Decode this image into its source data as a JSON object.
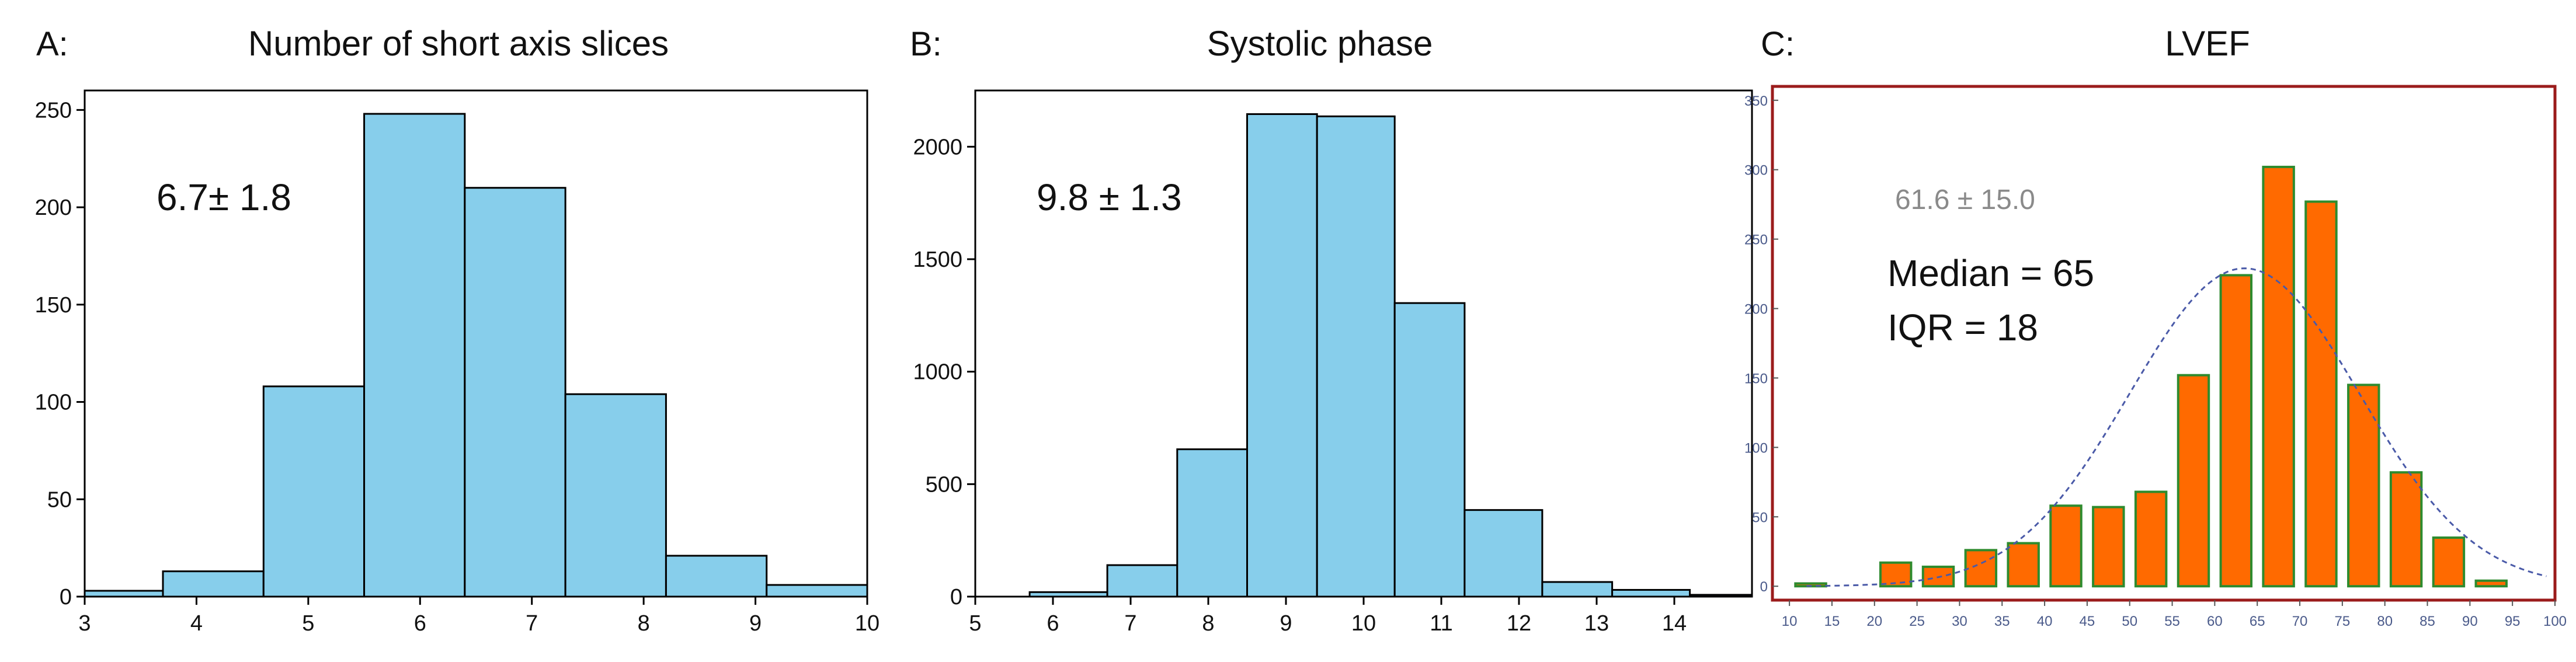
{
  "panels": [
    {
      "letter": "A:",
      "title": "Number of short axis slices",
      "annotation": "6.7± 1.8",
      "bar_color": "#87ceeb"
    },
    {
      "letter": "B:",
      "title": "Systolic phase",
      "annotation": "9.8 ± 1.3",
      "bar_color": "#87ceeb"
    },
    {
      "letter": "C:",
      "title": "LVEF",
      "annotation_gray": "61.6 ± 15.0",
      "median_text": "Median = 65",
      "iqr_text": "IQR = 18",
      "bar_color": "#ff6a00",
      "bar_edge_color": "#2e8b2e",
      "frame_color": "#9b1c1c",
      "curve_color": "#4a5aa8"
    }
  ],
  "chart_data": [
    {
      "type": "bar",
      "title": "Number of short axis slices",
      "bins": [
        {
          "x0": 3.0,
          "x1": 3.7,
          "value": 3
        },
        {
          "x0": 3.7,
          "x1": 4.6,
          "value": 13
        },
        {
          "x0": 4.6,
          "x1": 5.5,
          "value": 108
        },
        {
          "x0": 5.5,
          "x1": 6.4,
          "value": 248
        },
        {
          "x0": 6.4,
          "x1": 7.3,
          "value": 210
        },
        {
          "x0": 7.3,
          "x1": 8.2,
          "value": 104
        },
        {
          "x0": 8.2,
          "x1": 9.1,
          "value": 21
        },
        {
          "x0": 9.1,
          "x1": 10.0,
          "value": 6
        }
      ],
      "xlim": [
        3,
        10
      ],
      "ylim": [
        0,
        260
      ],
      "xticks": [
        3,
        4,
        5,
        6,
        7,
        8,
        9,
        10
      ],
      "yticks": [
        0,
        50,
        100,
        150,
        200,
        250
      ],
      "xlabel": "",
      "ylabel": ""
    },
    {
      "type": "bar",
      "title": "Systolic phase",
      "bins": [
        {
          "x0": 5.7,
          "x1": 6.7,
          "value": 20
        },
        {
          "x0": 6.7,
          "x1": 7.6,
          "value": 140
        },
        {
          "x0": 7.6,
          "x1": 8.5,
          "value": 655
        },
        {
          "x0": 8.5,
          "x1": 9.4,
          "value": 2145
        },
        {
          "x0": 9.4,
          "x1": 10.4,
          "value": 2135
        },
        {
          "x0": 10.4,
          "x1": 11.3,
          "value": 1305
        },
        {
          "x0": 11.3,
          "x1": 12.3,
          "value": 385
        },
        {
          "x0": 12.3,
          "x1": 13.2,
          "value": 65
        },
        {
          "x0": 13.2,
          "x1": 14.2,
          "value": 30
        },
        {
          "x0": 14.2,
          "x1": 15.0,
          "value": 8
        }
      ],
      "xlim": [
        5,
        15
      ],
      "ylim": [
        0,
        2250
      ],
      "xticks": [
        5,
        6,
        7,
        8,
        9,
        10,
        11,
        12,
        13,
        14
      ],
      "yticks": [
        0,
        500,
        1000,
        1500,
        2000
      ],
      "xlabel": "",
      "ylabel": ""
    },
    {
      "type": "bar",
      "title": "LVEF",
      "categories": [
        12.5,
        22.5,
        27.5,
        32.5,
        37.5,
        42.5,
        47.5,
        52.5,
        57.5,
        62.5,
        67.5,
        72.5,
        77.5,
        82.5,
        87.5,
        92.5
      ],
      "values": [
        2,
        17,
        14,
        26,
        31,
        58,
        57,
        68,
        152,
        224,
        302,
        277,
        145,
        82,
        35,
        4
      ],
      "bin_width": 5,
      "normal_fit": {
        "mean": 63.5,
        "sd": 13.5,
        "peak": 229
      },
      "xlim": [
        8,
        100
      ],
      "ylim": [
        -10,
        360
      ],
      "xticks": [
        10,
        15,
        20,
        25,
        30,
        35,
        40,
        45,
        50,
        55,
        60,
        65,
        70,
        75,
        80,
        85,
        90,
        95,
        100
      ],
      "yticks": [
        0,
        50,
        100,
        150,
        200,
        250,
        300,
        350
      ],
      "xlabel": "",
      "ylabel": ""
    }
  ]
}
